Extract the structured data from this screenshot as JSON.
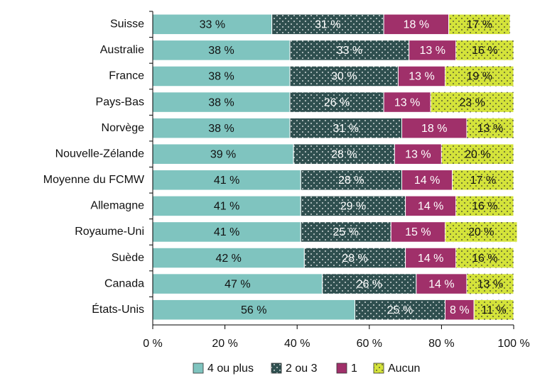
{
  "chart_data": {
    "type": "stacked_bar_horizontal",
    "categories": [
      "Suisse",
      "Australie",
      "France",
      "Pays-Bas",
      "Norvège",
      "Nouvelle-Zélande",
      "Moyenne du FCMW",
      "Allemagne",
      "Royaume-Uni",
      "Suède",
      "Canada",
      "États-Unis"
    ],
    "series": [
      {
        "name": "4 ou plus",
        "color": "#7fc4bf",
        "dotted": false,
        "values": [
          33,
          38,
          38,
          38,
          38,
          39,
          41,
          41,
          41,
          42,
          47,
          56
        ],
        "value_labels": [
          "33 %",
          "38 %",
          "38 %",
          "38 %",
          "38 %",
          "39 %",
          "41 %",
          "41 %",
          "41 %",
          "42 %",
          "47 %",
          "56 %"
        ]
      },
      {
        "name": "2 ou 3",
        "color": "#2f4f4f",
        "dotted": true,
        "values": [
          31,
          33,
          30,
          26,
          31,
          28,
          28,
          29,
          25,
          28,
          26,
          25
        ],
        "value_labels": [
          "31 %",
          "33 %",
          "30 %",
          "26 %",
          "31 %",
          "28 %",
          "28 %",
          "29 %",
          "25 %",
          "28 %",
          "26 %",
          "25 %"
        ]
      },
      {
        "name": "1",
        "color": "#a0306a",
        "dotted": false,
        "values": [
          18,
          13,
          13,
          13,
          18,
          13,
          14,
          14,
          15,
          14,
          14,
          8
        ],
        "value_labels": [
          "18 %",
          "13 %",
          "13 %",
          "13 %",
          "18 %",
          "13 %",
          "14 %",
          "14 %",
          "15 %",
          "14 %",
          "14 %",
          "8 %"
        ]
      },
      {
        "name": "Aucun",
        "color": "#d4e33a",
        "dotted": true,
        "values": [
          17,
          16,
          19,
          23,
          13,
          20,
          17,
          16,
          20,
          16,
          13,
          11
        ],
        "value_labels": [
          "17 %",
          "16 %",
          "19 %",
          "23 %",
          "13 %",
          "20 %",
          "17 %",
          "16 %",
          "20 %",
          "16 %",
          "13 %",
          "11 %"
        ]
      }
    ],
    "xlim": [
      0,
      100
    ],
    "xticks": [
      {
        "value": 0,
        "label": "0 %"
      },
      {
        "value": 20,
        "label": "20 %"
      },
      {
        "value": 40,
        "label": "40 %"
      },
      {
        "value": 60,
        "label": "60 %"
      },
      {
        "value": 80,
        "label": "80 %"
      },
      {
        "value": 100,
        "label": "100 %"
      }
    ],
    "legend": "bottom"
  }
}
